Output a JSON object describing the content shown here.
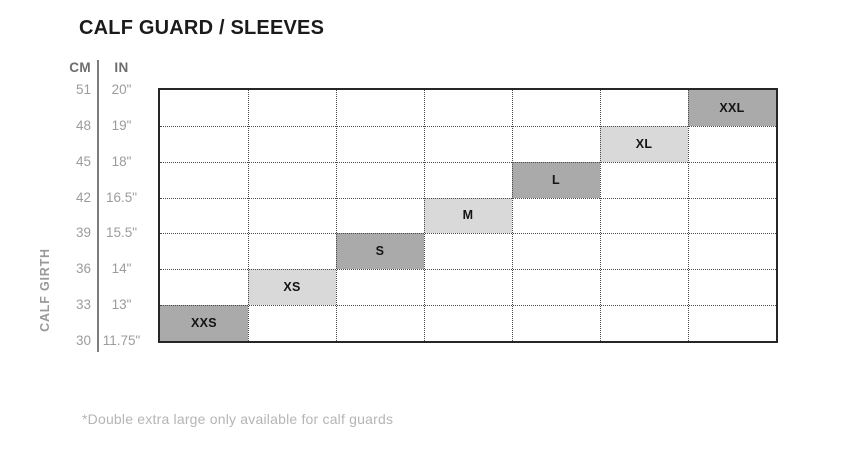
{
  "title": "CALF GUARD / SLEEVES",
  "footnote": "*Double extra large only available for calf guards",
  "chart_data": {
    "type": "heatmap",
    "title": "CALF GUARD / SLEEVES",
    "ylabel": "CALF GIRTH",
    "y_axis": {
      "unit_headers": [
        "CM",
        "IN"
      ],
      "ticks_cm": [
        "51",
        "48",
        "45",
        "42",
        "39",
        "36",
        "33",
        "30"
      ],
      "ticks_in": [
        "20\"",
        "19\"",
        "18\"",
        "16.5\"",
        "15.5\"",
        "14\"",
        "13\"",
        "11.75\""
      ]
    },
    "grid": {
      "columns": 7,
      "rows": 7,
      "line_style": "dotted",
      "legend_position": "none"
    },
    "sizes": [
      {
        "label": "XXS",
        "col": 1,
        "row": 7,
        "cm_range": [
          30,
          33
        ],
        "in_range": [
          "11.75\"",
          "13\""
        ],
        "shade": "dark"
      },
      {
        "label": "XS",
        "col": 2,
        "row": 6,
        "cm_range": [
          33,
          36
        ],
        "in_range": [
          "13\"",
          "14\""
        ],
        "shade": "light"
      },
      {
        "label": "S",
        "col": 3,
        "row": 5,
        "cm_range": [
          36,
          39
        ],
        "in_range": [
          "14\"",
          "15.5\""
        ],
        "shade": "dark"
      },
      {
        "label": "M",
        "col": 4,
        "row": 4,
        "cm_range": [
          39,
          42
        ],
        "in_range": [
          "15.5\"",
          "16.5\""
        ],
        "shade": "light"
      },
      {
        "label": "L",
        "col": 5,
        "row": 3,
        "cm_range": [
          42,
          45
        ],
        "in_range": [
          "16.5\"",
          "18\""
        ],
        "shade": "dark"
      },
      {
        "label": "XL",
        "col": 6,
        "row": 2,
        "cm_range": [
          45,
          48
        ],
        "in_range": [
          "18\"",
          "19\""
        ],
        "shade": "light"
      },
      {
        "label": "XXL",
        "col": 7,
        "row": 1,
        "cm_range": [
          48,
          51
        ],
        "in_range": [
          "19\"",
          "20\""
        ],
        "shade": "dark"
      }
    ],
    "colors": {
      "box_dark": "#aaaaaa",
      "box_light": "#d9d9d9",
      "box_label": "#141414",
      "axis_text": "#9c9c9c",
      "header_text": "#6d6d6d",
      "title_text": "#1b1b1b",
      "footnote_text": "#b5b5b5",
      "grid_border": "#262626"
    },
    "annotations": [
      "*Double extra large only available for calf guards"
    ]
  }
}
